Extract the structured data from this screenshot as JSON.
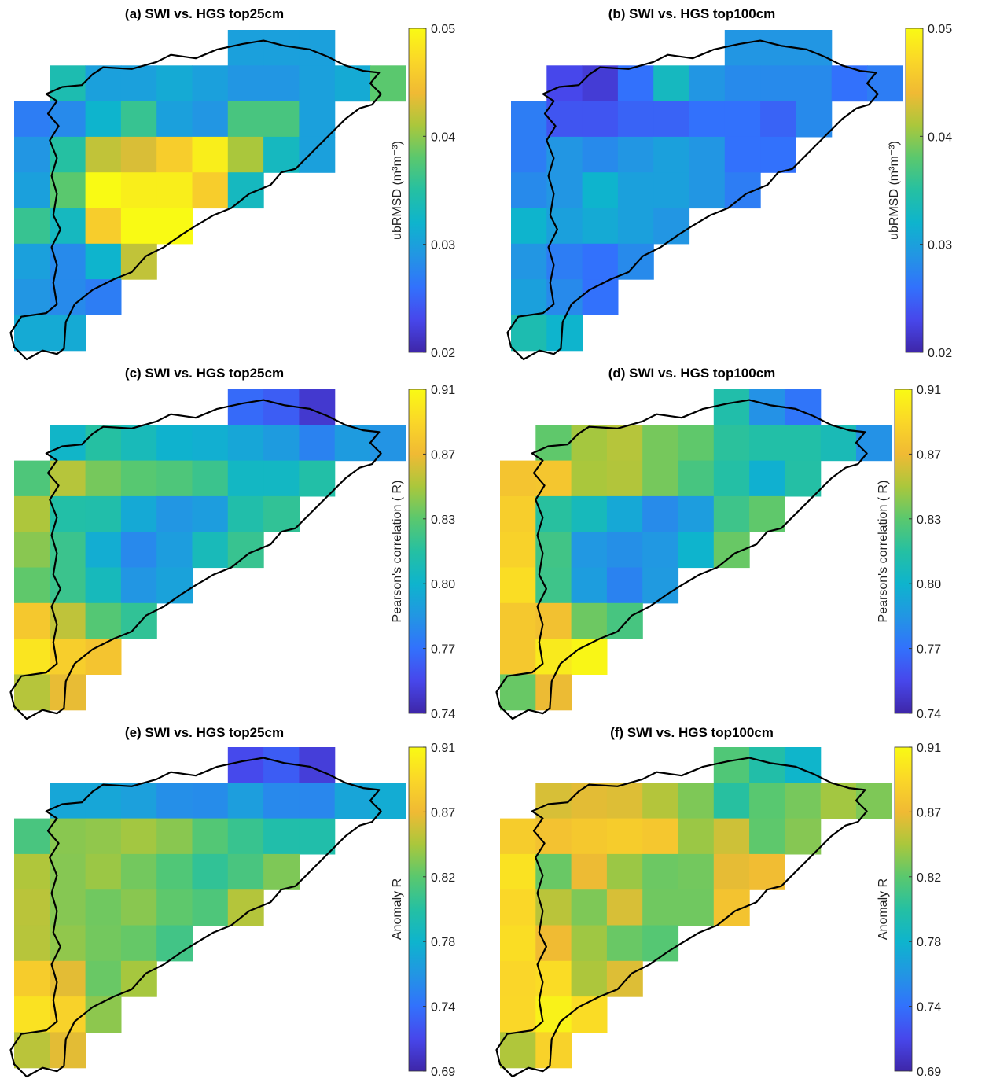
{
  "figure": {
    "panels": [
      {
        "title": "(a) SWI vs. HGS top25cm"
      },
      {
        "title": "(b) SWI vs. HGS top100cm"
      },
      {
        "title": "(c) SWI vs. HGS top25cm"
      },
      {
        "title": "(d) SWI vs. HGS top100cm"
      },
      {
        "title": "(e) SWI vs. HGS top25cm"
      },
      {
        "title": "(f) SWI vs. HGS top100cm"
      }
    ],
    "colorbars": [
      {
        "label": "ubRMSD (m³m⁻³)",
        "ticks": [
          "0.05",
          "0.04",
          "0.03",
          "0.02"
        ]
      },
      {
        "label": "ubRMSD (m³m⁻³)",
        "ticks": [
          "0.05",
          "0.04",
          "0.03",
          "0.02"
        ]
      },
      {
        "label": "Pearson's correlation ( R)",
        "ticks": [
          "0.91",
          "0.87",
          "0.83",
          "0.80",
          "0.77",
          "0.74"
        ]
      },
      {
        "label": "Pearson's correlation ( R)",
        "ticks": [
          "0.91",
          "0.87",
          "0.83",
          "0.80",
          "0.77",
          "0.74"
        ]
      },
      {
        "label": "Anomaly  R",
        "ticks": [
          "0.91",
          "0.87",
          "0.82",
          "0.78",
          "0.74",
          "0.69"
        ]
      },
      {
        "label": "Anomaly  R",
        "ticks": [
          "0.91",
          "0.87",
          "0.82",
          "0.78",
          "0.74",
          "0.69"
        ]
      }
    ]
  },
  "colormap": "parula",
  "chart_data": [
    {
      "type": "heatmap",
      "title": "(a) SWI vs. HGS top25cm",
      "colorbar_label": "ubRMSD (m³m⁻³)",
      "clim": [
        0.02,
        0.05
      ],
      "colorbar_ticks": [
        0.05,
        0.04,
        0.03,
        0.02
      ],
      "grid": [
        [
          null,
          null,
          null,
          null,
          null,
          null,
          0.03,
          0.03,
          0.03,
          null,
          null
        ],
        [
          null,
          0.034,
          0.03,
          0.03,
          0.031,
          0.03,
          0.029,
          0.029,
          0.03,
          0.031,
          0.038
        ],
        [
          0.027,
          0.028,
          0.032,
          0.036,
          0.03,
          0.029,
          0.037,
          0.037,
          0.03,
          null,
          null
        ],
        [
          0.029,
          0.035,
          0.042,
          0.043,
          0.046,
          0.049,
          0.041,
          0.033,
          0.03,
          null,
          null
        ],
        [
          0.03,
          0.038,
          0.05,
          0.049,
          0.049,
          0.046,
          0.033,
          null,
          null,
          null,
          null
        ],
        [
          0.036,
          0.033,
          0.046,
          0.05,
          0.05,
          null,
          null,
          null,
          null,
          null,
          null
        ],
        [
          0.03,
          0.028,
          0.032,
          0.042,
          null,
          null,
          null,
          null,
          null,
          null,
          null
        ],
        [
          0.029,
          0.028,
          0.027,
          null,
          null,
          null,
          null,
          null,
          null,
          null,
          null
        ],
        [
          0.031,
          0.031,
          null,
          null,
          null,
          null,
          null,
          null,
          null,
          null,
          null
        ]
      ]
    },
    {
      "type": "heatmap",
      "title": "(b) SWI vs. HGS top100cm",
      "colorbar_label": "ubRMSD (m³m⁻³)",
      "clim": [
        0.02,
        0.05
      ],
      "colorbar_ticks": [
        0.05,
        0.04,
        0.03,
        0.02
      ],
      "grid": [
        [
          null,
          null,
          null,
          null,
          null,
          null,
          0.029,
          0.029,
          0.029,
          null,
          null
        ],
        [
          null,
          0.023,
          0.022,
          0.026,
          0.033,
          0.029,
          0.028,
          0.028,
          0.028,
          0.026,
          0.027
        ],
        [
          0.027,
          0.024,
          0.024,
          0.025,
          0.025,
          0.026,
          0.026,
          0.025,
          0.028,
          null,
          null
        ],
        [
          0.027,
          0.029,
          0.028,
          0.029,
          0.03,
          0.029,
          0.026,
          0.026,
          null,
          null,
          null
        ],
        [
          0.028,
          0.029,
          0.032,
          0.03,
          0.03,
          0.029,
          0.027,
          null,
          null,
          null,
          null
        ],
        [
          0.032,
          0.03,
          0.031,
          0.03,
          0.029,
          null,
          null,
          null,
          null,
          null,
          null
        ],
        [
          0.029,
          0.027,
          0.026,
          0.028,
          null,
          null,
          null,
          null,
          null,
          null,
          null
        ],
        [
          0.03,
          0.028,
          0.026,
          null,
          null,
          null,
          null,
          null,
          null,
          null,
          null
        ],
        [
          0.034,
          0.032,
          null,
          null,
          null,
          null,
          null,
          null,
          null,
          null,
          null
        ]
      ]
    },
    {
      "type": "heatmap",
      "title": "(c) SWI vs. HGS top25cm",
      "colorbar_label": "Pearson's correlation ( R)",
      "clim": [
        0.74,
        0.91
      ],
      "colorbar_ticks": [
        0.91,
        0.87,
        0.83,
        0.8,
        0.77,
        0.74
      ],
      "grid": [
        [
          null,
          null,
          null,
          null,
          null,
          null,
          0.771,
          0.766,
          0.75,
          null,
          null
        ],
        [
          null,
          0.81,
          0.825,
          0.816,
          0.807,
          0.805,
          0.8,
          0.794,
          0.782,
          0.794,
          0.79
        ],
        [
          0.838,
          0.862,
          0.848,
          0.841,
          0.838,
          0.832,
          0.812,
          0.812,
          0.823,
          null,
          null
        ],
        [
          0.86,
          0.823,
          0.822,
          0.802,
          0.791,
          0.795,
          0.822,
          0.829,
          null,
          null,
          null
        ],
        [
          0.852,
          0.832,
          0.804,
          0.785,
          0.795,
          0.816,
          0.831,
          null,
          null,
          null,
          null
        ],
        [
          0.843,
          0.832,
          0.815,
          0.791,
          0.798,
          null,
          null,
          null,
          null,
          null,
          null
        ],
        [
          0.884,
          0.864,
          0.84,
          0.829,
          null,
          null,
          null,
          null,
          null,
          null,
          null
        ],
        [
          0.9,
          0.888,
          0.882,
          null,
          null,
          null,
          null,
          null,
          null,
          null,
          null
        ],
        [
          0.862,
          0.874,
          null,
          null,
          null,
          null,
          null,
          null,
          null,
          null,
          null
        ]
      ]
    },
    {
      "type": "heatmap",
      "title": "(d) SWI vs. HGS top100cm",
      "colorbar_label": "Pearson's correlation ( R)",
      "clim": [
        0.74,
        0.91
      ],
      "colorbar_ticks": [
        0.91,
        0.87,
        0.83,
        0.8,
        0.77,
        0.74
      ],
      "grid": [
        [
          null,
          null,
          null,
          null,
          null,
          null,
          0.822,
          0.789,
          0.776,
          null,
          null
        ],
        [
          null,
          0.843,
          0.858,
          0.862,
          0.848,
          0.843,
          0.827,
          0.823,
          0.823,
          0.817,
          0.789
        ],
        [
          0.882,
          0.883,
          0.859,
          0.861,
          0.848,
          0.836,
          0.824,
          0.806,
          0.824,
          null,
          null
        ],
        [
          0.888,
          0.826,
          0.815,
          0.801,
          0.786,
          0.795,
          0.833,
          0.843,
          null,
          null,
          null
        ],
        [
          0.89,
          0.834,
          0.792,
          0.788,
          0.792,
          0.808,
          0.845,
          null,
          null,
          null,
          null
        ],
        [
          0.896,
          0.833,
          0.795,
          0.782,
          0.793,
          null,
          null,
          null,
          null,
          null,
          null
        ],
        [
          0.884,
          0.88,
          0.846,
          0.836,
          null,
          null,
          null,
          null,
          null,
          null,
          null
        ],
        [
          0.884,
          0.902,
          0.908,
          null,
          null,
          null,
          null,
          null,
          null,
          null,
          null
        ],
        [
          0.845,
          0.875,
          null,
          null,
          null,
          null,
          null,
          null,
          null,
          null,
          null
        ]
      ]
    },
    {
      "type": "heatmap",
      "title": "(e) SWI vs. HGS top25cm",
      "colorbar_label": "Anomaly  R",
      "clim": [
        0.69,
        0.91
      ],
      "colorbar_ticks": [
        0.91,
        0.87,
        0.82,
        0.78,
        0.74,
        0.69
      ],
      "grid": [
        [
          null,
          null,
          null,
          null,
          null,
          null,
          0.713,
          0.723,
          0.706,
          null,
          null
        ],
        [
          null,
          0.768,
          0.768,
          0.763,
          0.752,
          0.75,
          0.762,
          0.748,
          0.747,
          0.767,
          0.772
        ],
        [
          0.815,
          0.835,
          0.837,
          0.842,
          0.835,
          0.819,
          0.808,
          0.796,
          0.796,
          null,
          null
        ],
        [
          0.846,
          0.834,
          0.84,
          0.829,
          0.818,
          0.805,
          0.815,
          0.832,
          null,
          null,
          null
        ],
        [
          0.849,
          0.834,
          0.828,
          0.835,
          0.823,
          0.817,
          0.847,
          null,
          null,
          null,
          null
        ],
        [
          0.848,
          0.837,
          0.829,
          0.825,
          0.812,
          null,
          null,
          null,
          null,
          null,
          null
        ],
        [
          0.88,
          0.862,
          0.826,
          0.843,
          null,
          null,
          null,
          null,
          null,
          null,
          null
        ],
        [
          0.895,
          0.884,
          0.836,
          null,
          null,
          null,
          null,
          null,
          null,
          null,
          null
        ],
        [
          0.849,
          0.862,
          null,
          null,
          null,
          null,
          null,
          null,
          null,
          null,
          null
        ]
      ]
    },
    {
      "type": "heatmap",
      "title": "(f) SWI vs. HGS top100cm",
      "colorbar_label": "Anomaly  R",
      "clim": [
        0.69,
        0.91
      ],
      "colorbar_ticks": [
        0.91,
        0.87,
        0.82,
        0.78,
        0.74,
        0.69
      ],
      "grid": [
        [
          null,
          null,
          null,
          null,
          null,
          null,
          0.818,
          0.797,
          0.779,
          null,
          null
        ],
        [
          null,
          0.858,
          0.862,
          0.86,
          0.847,
          0.832,
          0.801,
          0.821,
          0.83,
          0.842,
          0.832
        ],
        [
          0.88,
          0.872,
          0.877,
          0.88,
          0.876,
          0.84,
          0.855,
          0.823,
          0.834,
          null,
          null
        ],
        [
          0.895,
          0.826,
          0.865,
          0.84,
          0.827,
          0.829,
          0.863,
          0.868,
          null,
          null,
          null
        ],
        [
          0.888,
          0.849,
          0.832,
          0.858,
          0.828,
          0.828,
          0.873,
          null,
          null,
          null,
          null
        ],
        [
          0.892,
          0.867,
          0.841,
          0.826,
          0.82,
          null,
          null,
          null,
          null,
          null,
          null
        ],
        [
          0.887,
          0.891,
          0.845,
          0.86,
          null,
          null,
          null,
          null,
          null,
          null,
          null
        ],
        [
          0.888,
          0.905,
          0.891,
          null,
          null,
          null,
          null,
          null,
          null,
          null,
          null
        ],
        [
          0.846,
          0.884,
          null,
          null,
          null,
          null,
          null,
          null,
          null,
          null,
          null
        ]
      ]
    }
  ]
}
